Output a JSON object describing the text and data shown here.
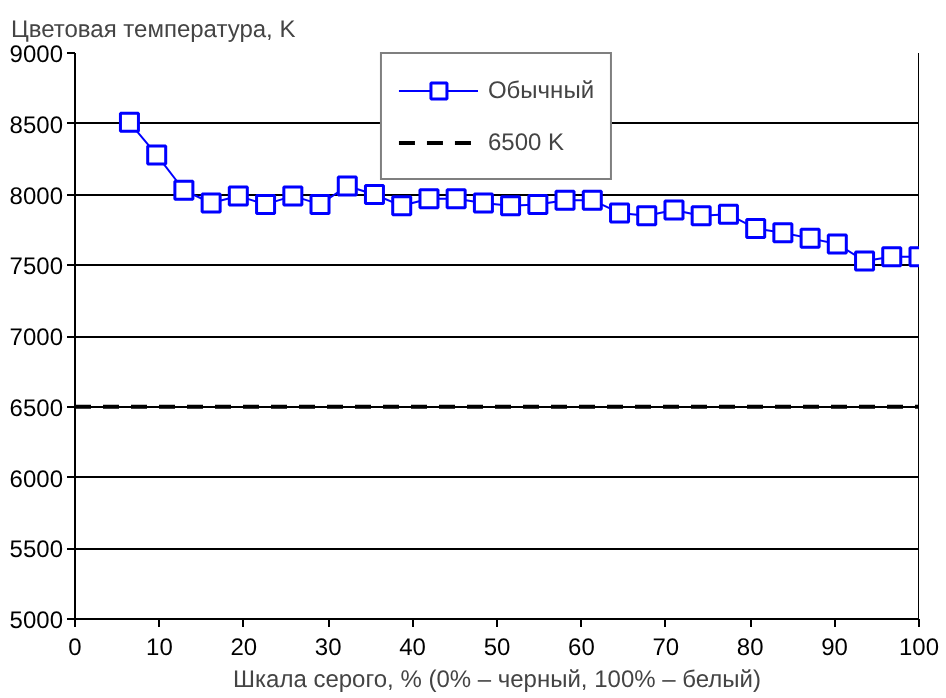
{
  "chart_data": {
    "type": "line",
    "ylabel": "Цветовая температура, K",
    "xlabel": "Шкала серого, % (0% – черный, 100% – белый)",
    "x": [
      6.45,
      9.68,
      12.9,
      16.13,
      19.35,
      22.58,
      25.81,
      29.03,
      32.26,
      35.48,
      38.71,
      41.94,
      45.16,
      48.39,
      51.61,
      54.84,
      58.06,
      61.29,
      64.52,
      67.74,
      70.97,
      74.19,
      77.42,
      80.65,
      83.87,
      87.1,
      90.32,
      93.55,
      96.77,
      100
    ],
    "series": [
      {
        "name": "Обычный",
        "color": "#0000ff",
        "values": [
          8510,
          8280,
          8030,
          7940,
          7990,
          7930,
          7990,
          7930,
          8060,
          8000,
          7920,
          7970,
          7970,
          7940,
          7920,
          7930,
          7960,
          7960,
          7870,
          7850,
          7890,
          7850,
          7860,
          7760,
          7730,
          7690,
          7650,
          7530,
          7560,
          7560
        ]
      }
    ],
    "ref_lines": [
      {
        "axis": "y",
        "value": 6500,
        "label": "6500 K",
        "color": "#000000",
        "line_style": "dashed"
      }
    ],
    "xlim": [
      0,
      100
    ],
    "xticks": [
      0,
      10,
      20,
      30,
      40,
      50,
      60,
      70,
      80,
      90,
      100
    ],
    "ylim": [
      5000,
      9000
    ],
    "yticks": [
      5000,
      5500,
      6000,
      6500,
      7000,
      7500,
      8000,
      8500,
      9000
    ],
    "grid": "y",
    "legend": "top",
    "marker": "square",
    "line_style": "solid"
  }
}
